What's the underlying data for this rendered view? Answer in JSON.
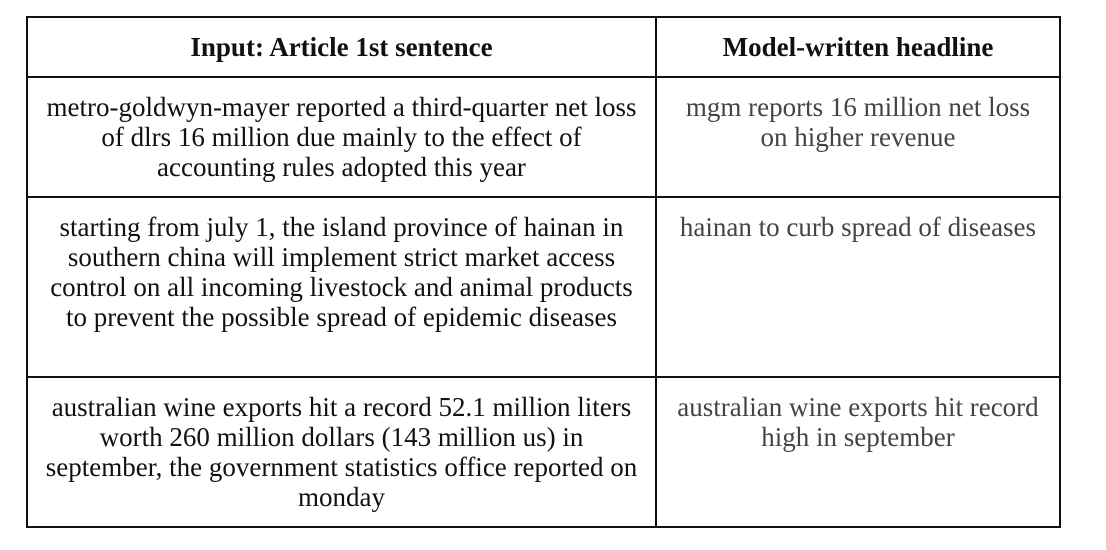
{
  "table": {
    "headers": [
      "Input: Article 1st sentence",
      "Model-written headline"
    ],
    "rows": [
      {
        "input": "metro-goldwyn-mayer reported a third-quarter net loss of dlrs 16 million due mainly to the effect of accounting rules adopted this year",
        "headline": "mgm reports 16 million net loss on higher revenue"
      },
      {
        "input": "starting from july 1, the island province of hainan in southern china will implement strict market access control on all incoming livestock and animal products to prevent the possible spread of epidemic diseases",
        "headline": "hainan to curb spread of diseases"
      },
      {
        "input": "australian wine exports hit a record 52.1 million liters worth 260 million dollars (143 million us) in september, the government statistics office reported on monday",
        "headline": "australian wine exports hit record high in september"
      }
    ]
  }
}
